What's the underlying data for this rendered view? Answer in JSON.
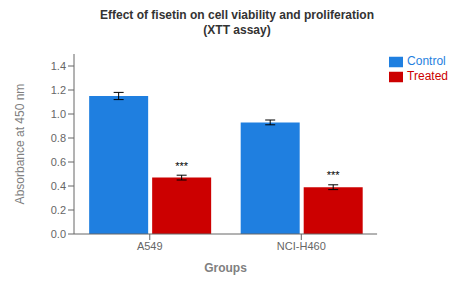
{
  "chart_data": {
    "type": "bar",
    "title": "Effect of fisetin on cell viability and proliferation",
    "subtitle": "(XTT assay)",
    "x_label": "Groups",
    "y_label": "Absorbance at 450 nm",
    "categories": [
      "A549",
      "NCI-H460"
    ],
    "series": [
      {
        "name": "Control",
        "color": "#1F7FE0",
        "values": [
          1.15,
          0.93
        ],
        "errors": [
          0.03,
          0.02
        ]
      },
      {
        "name": "Treated",
        "color": "#CC0000",
        "values": [
          0.47,
          0.39
        ],
        "errors": [
          0.02,
          0.02
        ]
      }
    ],
    "annotations": [
      {
        "text": "***",
        "category": "A549",
        "series": "Treated"
      },
      {
        "text": "***",
        "category": "NCI-H460",
        "series": "Treated"
      }
    ],
    "ylim": [
      0,
      1.5
    ],
    "yticks": [
      {
        "value": 0,
        "label": "0.0"
      },
      0.2,
      0.4,
      0.6,
      0.8,
      {
        "value": 1.0,
        "label": "1.0"
      },
      1.2,
      1.4
    ],
    "grid": false,
    "legend": "right"
  }
}
